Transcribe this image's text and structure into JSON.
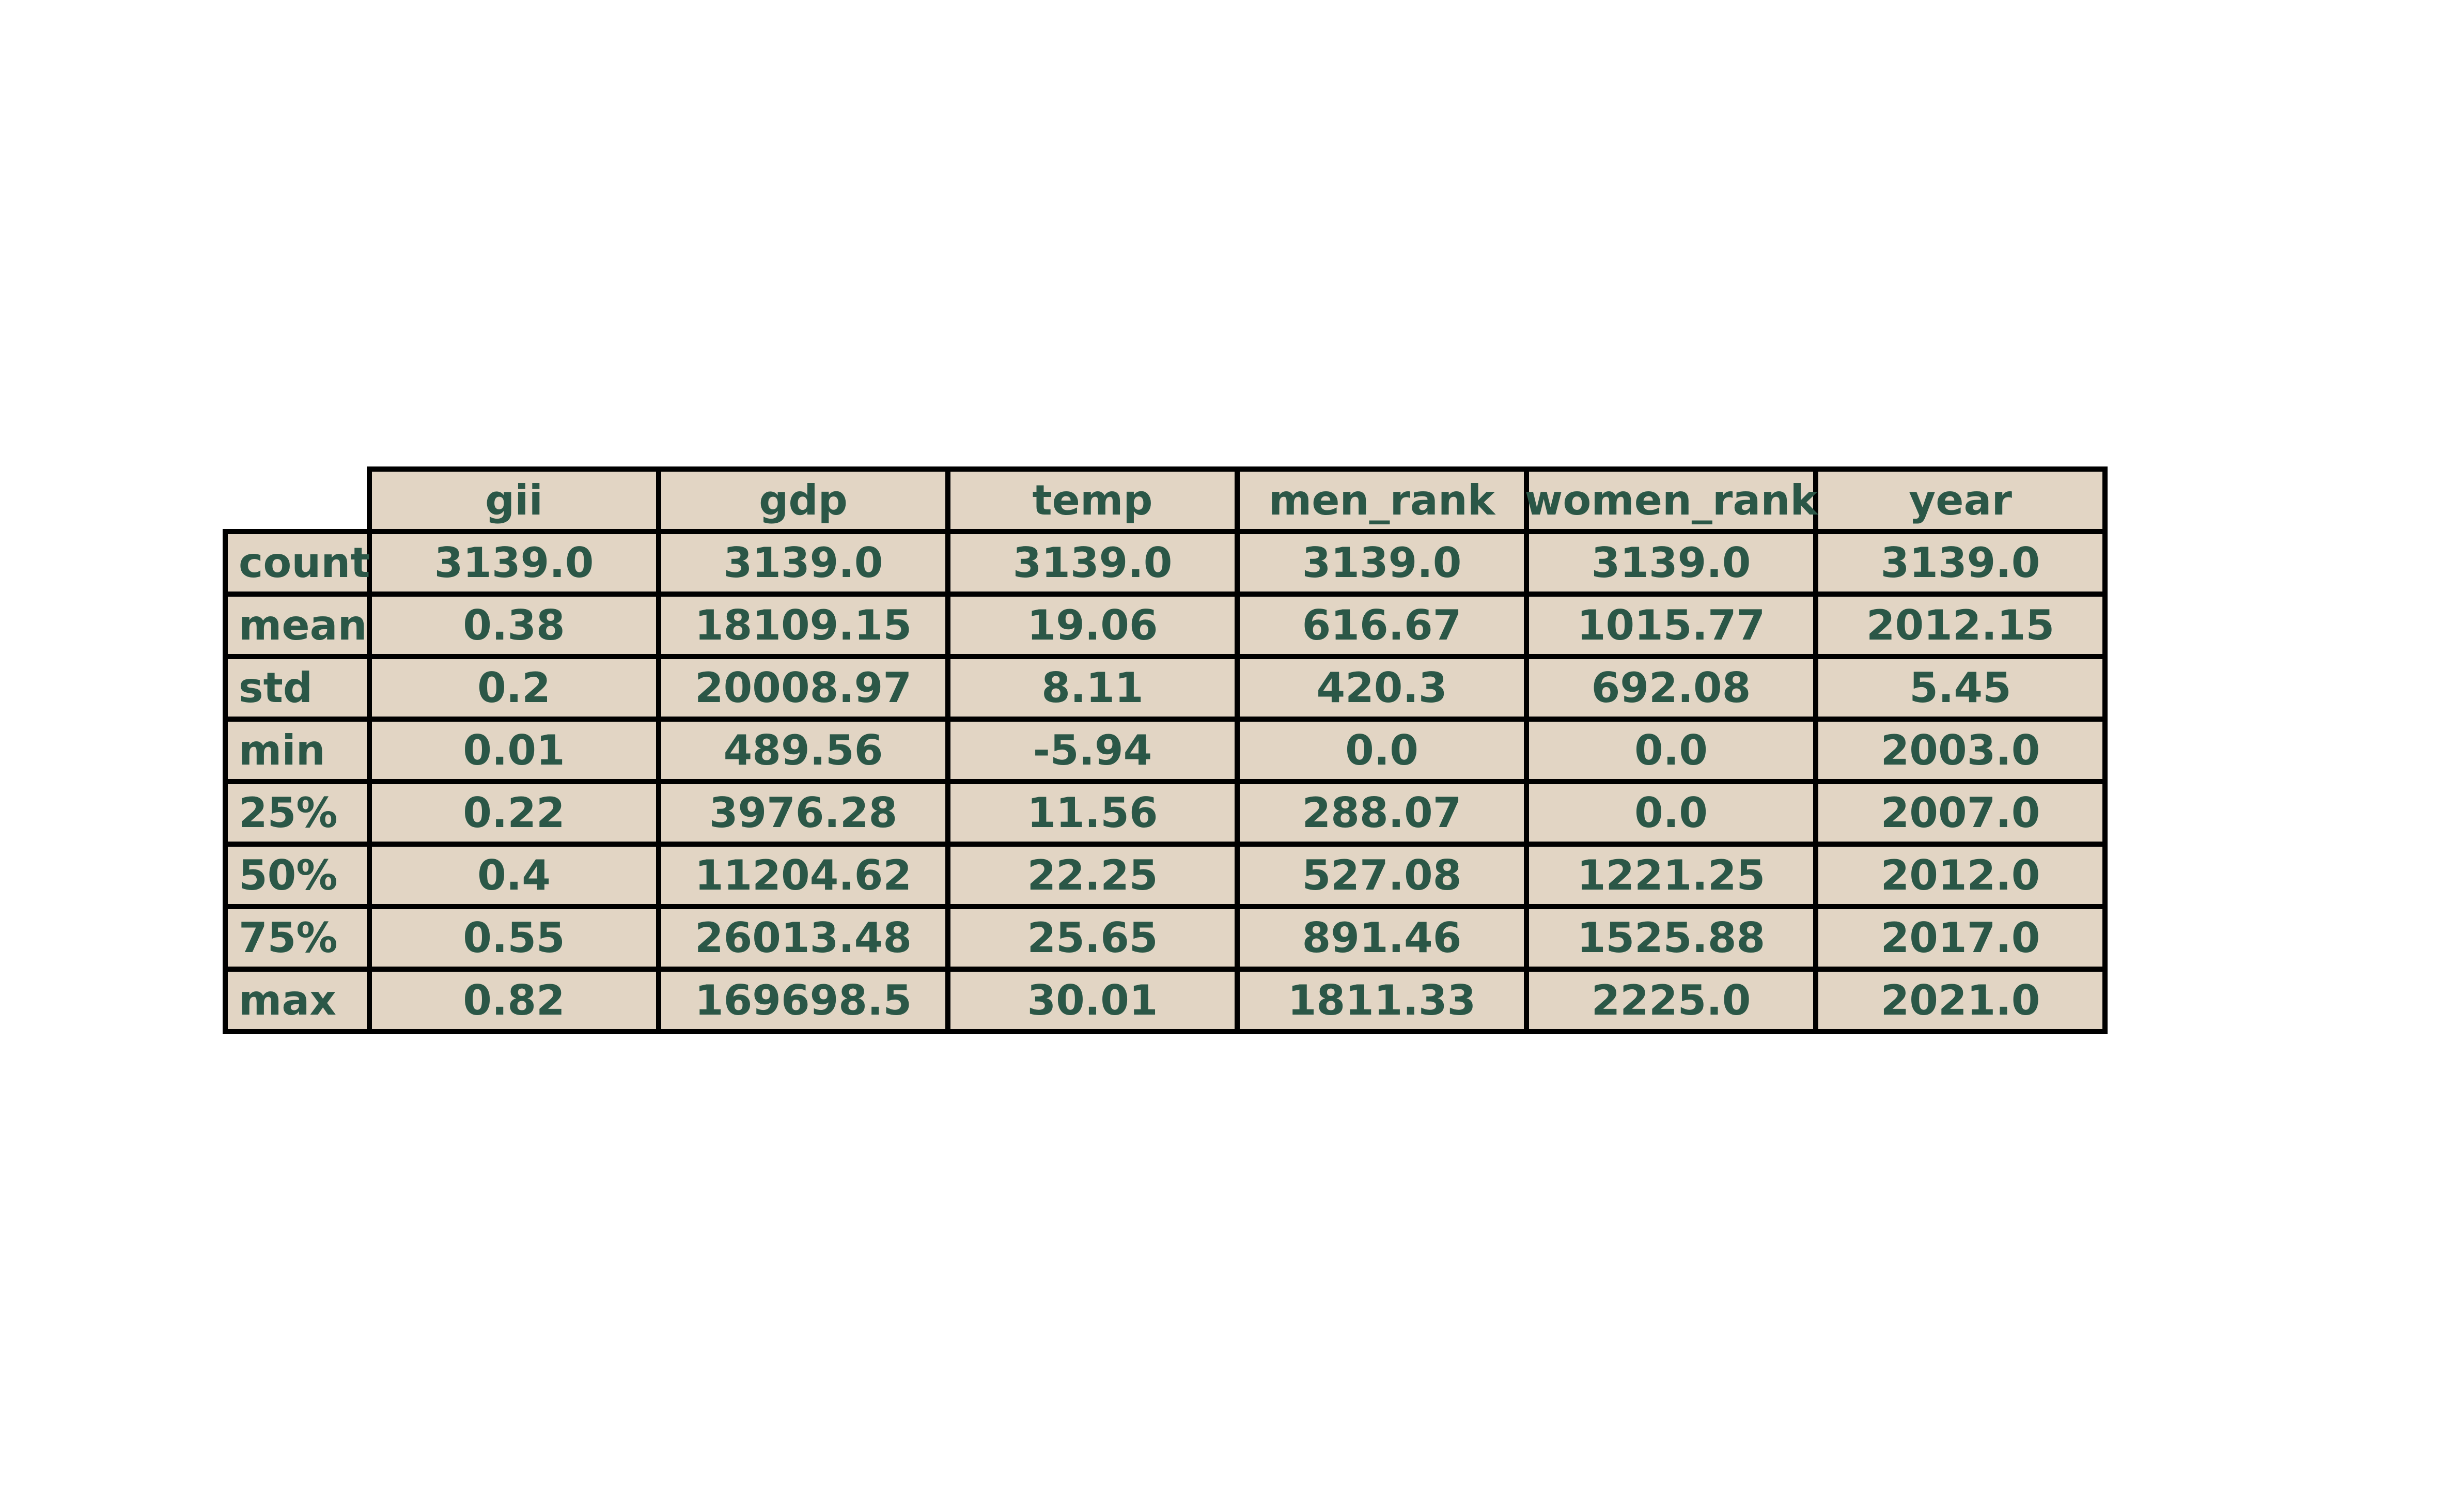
{
  "colors": {
    "cell_fill": "#e2d5c4",
    "text": "#2b5747",
    "border": "#000000",
    "background": "#ffffff"
  },
  "chart_data": {
    "type": "table",
    "columns": [
      "gii",
      "gdp",
      "temp",
      "men_rank",
      "women_rank",
      "year"
    ],
    "row_labels": [
      "count",
      "mean",
      "std",
      "min",
      "25%",
      "50%",
      "75%",
      "max"
    ],
    "rows": [
      [
        "3139.0",
        "3139.0",
        "3139.0",
        "3139.0",
        "3139.0",
        "3139.0"
      ],
      [
        "0.38",
        "18109.15",
        "19.06",
        "616.67",
        "1015.77",
        "2012.15"
      ],
      [
        "0.2",
        "20008.97",
        "8.11",
        "420.3",
        "692.08",
        "5.45"
      ],
      [
        "0.01",
        "489.56",
        "-5.94",
        "0.0",
        "0.0",
        "2003.0"
      ],
      [
        "0.22",
        "3976.28",
        "11.56",
        "288.07",
        "0.0",
        "2007.0"
      ],
      [
        "0.4",
        "11204.62",
        "22.25",
        "527.08",
        "1221.25",
        "2012.0"
      ],
      [
        "0.55",
        "26013.48",
        "25.65",
        "891.46",
        "1525.88",
        "2017.0"
      ],
      [
        "0.82",
        "169698.5",
        "30.01",
        "1811.33",
        "2225.0",
        "2021.0"
      ]
    ]
  }
}
